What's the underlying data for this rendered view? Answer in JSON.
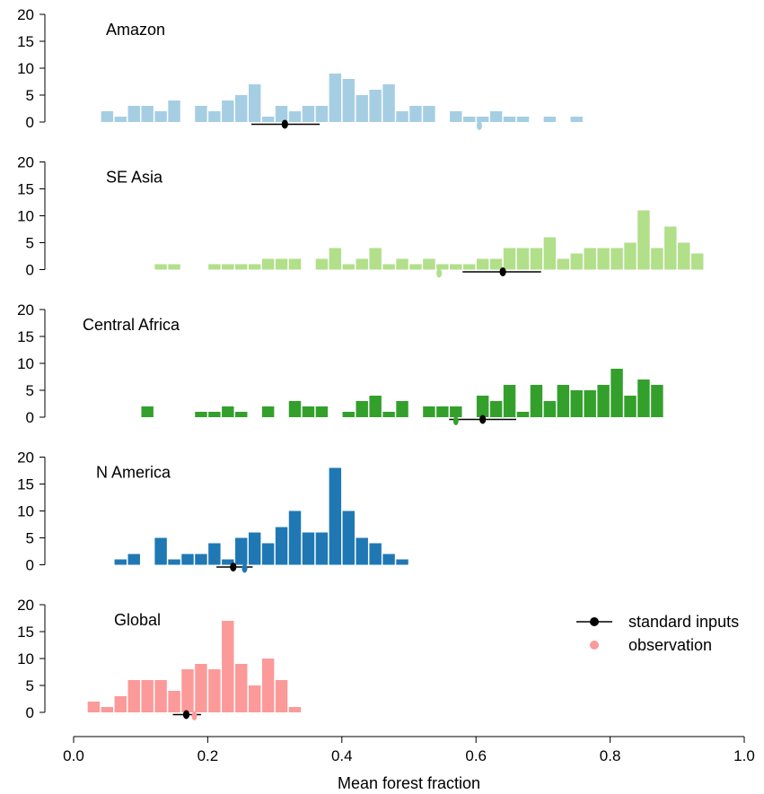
{
  "chart_data": {
    "type": "bar",
    "xlabel": "Mean forest fraction",
    "xlim": [
      0,
      1
    ],
    "x_ticks": [
      "0.0",
      "0.2",
      "0.4",
      "0.6",
      "0.8",
      "1.0"
    ],
    "y_ticks": [
      "0",
      "5",
      "10",
      "15",
      "20"
    ],
    "ylim": [
      0,
      20
    ],
    "bin_width": 0.02,
    "legend": {
      "position": "bottom-right",
      "entries": [
        {
          "label": "standard inputs",
          "color": "#000000",
          "marker": "point-with-line"
        },
        {
          "label": "observation",
          "color": "#fb9a99",
          "marker": "point"
        }
      ]
    },
    "panels": [
      {
        "name": "Amazon",
        "color": "#a6cee3",
        "bins": [
          {
            "x": 0.05,
            "count": 2
          },
          {
            "x": 0.07,
            "count": 1
          },
          {
            "x": 0.09,
            "count": 3
          },
          {
            "x": 0.11,
            "count": 3
          },
          {
            "x": 0.13,
            "count": 2
          },
          {
            "x": 0.15,
            "count": 4
          },
          {
            "x": 0.19,
            "count": 3
          },
          {
            "x": 0.21,
            "count": 2
          },
          {
            "x": 0.23,
            "count": 4
          },
          {
            "x": 0.25,
            "count": 5
          },
          {
            "x": 0.27,
            "count": 7
          },
          {
            "x": 0.29,
            "count": 1
          },
          {
            "x": 0.31,
            "count": 3
          },
          {
            "x": 0.33,
            "count": 2
          },
          {
            "x": 0.35,
            "count": 3
          },
          {
            "x": 0.37,
            "count": 3
          },
          {
            "x": 0.39,
            "count": 9
          },
          {
            "x": 0.41,
            "count": 8
          },
          {
            "x": 0.43,
            "count": 5
          },
          {
            "x": 0.45,
            "count": 6
          },
          {
            "x": 0.47,
            "count": 7
          },
          {
            "x": 0.49,
            "count": 2
          },
          {
            "x": 0.51,
            "count": 3
          },
          {
            "x": 0.53,
            "count": 3
          },
          {
            "x": 0.57,
            "count": 2
          },
          {
            "x": 0.59,
            "count": 1
          },
          {
            "x": 0.61,
            "count": 1
          },
          {
            "x": 0.63,
            "count": 2
          },
          {
            "x": 0.65,
            "count": 1
          },
          {
            "x": 0.67,
            "count": 1
          },
          {
            "x": 0.71,
            "count": 1
          },
          {
            "x": 0.75,
            "count": 1
          }
        ],
        "standard_inputs": {
          "mean": 0.315,
          "low": 0.265,
          "high": 0.367
        },
        "observation": 0.605
      },
      {
        "name": "SE Asia",
        "color": "#b2df8a",
        "bins": [
          {
            "x": 0.13,
            "count": 1
          },
          {
            "x": 0.15,
            "count": 1
          },
          {
            "x": 0.21,
            "count": 1
          },
          {
            "x": 0.23,
            "count": 1
          },
          {
            "x": 0.25,
            "count": 1
          },
          {
            "x": 0.27,
            "count": 1
          },
          {
            "x": 0.29,
            "count": 2
          },
          {
            "x": 0.31,
            "count": 2
          },
          {
            "x": 0.33,
            "count": 2
          },
          {
            "x": 0.37,
            "count": 2
          },
          {
            "x": 0.39,
            "count": 4
          },
          {
            "x": 0.41,
            "count": 1
          },
          {
            "x": 0.43,
            "count": 2
          },
          {
            "x": 0.45,
            "count": 4
          },
          {
            "x": 0.47,
            "count": 1
          },
          {
            "x": 0.49,
            "count": 2
          },
          {
            "x": 0.51,
            "count": 1
          },
          {
            "x": 0.53,
            "count": 2
          },
          {
            "x": 0.55,
            "count": 1
          },
          {
            "x": 0.57,
            "count": 1
          },
          {
            "x": 0.59,
            "count": 1
          },
          {
            "x": 0.61,
            "count": 2
          },
          {
            "x": 0.63,
            "count": 2
          },
          {
            "x": 0.65,
            "count": 4
          },
          {
            "x": 0.67,
            "count": 4
          },
          {
            "x": 0.69,
            "count": 4
          },
          {
            "x": 0.71,
            "count": 6
          },
          {
            "x": 0.73,
            "count": 2
          },
          {
            "x": 0.75,
            "count": 3
          },
          {
            "x": 0.77,
            "count": 4
          },
          {
            "x": 0.79,
            "count": 4
          },
          {
            "x": 0.81,
            "count": 4
          },
          {
            "x": 0.83,
            "count": 5
          },
          {
            "x": 0.85,
            "count": 11
          },
          {
            "x": 0.87,
            "count": 4
          },
          {
            "x": 0.89,
            "count": 8
          },
          {
            "x": 0.91,
            "count": 5
          },
          {
            "x": 0.93,
            "count": 3
          }
        ],
        "standard_inputs": {
          "mean": 0.64,
          "low": 0.58,
          "high": 0.697
        },
        "observation": 0.545
      },
      {
        "name": "Central Africa",
        "color": "#33a02c",
        "bins": [
          {
            "x": 0.11,
            "count": 2
          },
          {
            "x": 0.19,
            "count": 1
          },
          {
            "x": 0.21,
            "count": 1
          },
          {
            "x": 0.23,
            "count": 2
          },
          {
            "x": 0.25,
            "count": 1
          },
          {
            "x": 0.29,
            "count": 2
          },
          {
            "x": 0.33,
            "count": 3
          },
          {
            "x": 0.35,
            "count": 2
          },
          {
            "x": 0.37,
            "count": 2
          },
          {
            "x": 0.41,
            "count": 1
          },
          {
            "x": 0.43,
            "count": 3
          },
          {
            "x": 0.45,
            "count": 4
          },
          {
            "x": 0.47,
            "count": 1
          },
          {
            "x": 0.49,
            "count": 3
          },
          {
            "x": 0.53,
            "count": 2
          },
          {
            "x": 0.55,
            "count": 2
          },
          {
            "x": 0.57,
            "count": 2
          },
          {
            "x": 0.61,
            "count": 4
          },
          {
            "x": 0.63,
            "count": 3
          },
          {
            "x": 0.65,
            "count": 6
          },
          {
            "x": 0.67,
            "count": 1
          },
          {
            "x": 0.69,
            "count": 6
          },
          {
            "x": 0.71,
            "count": 3
          },
          {
            "x": 0.73,
            "count": 6
          },
          {
            "x": 0.75,
            "count": 5
          },
          {
            "x": 0.77,
            "count": 5
          },
          {
            "x": 0.79,
            "count": 6
          },
          {
            "x": 0.81,
            "count": 9
          },
          {
            "x": 0.83,
            "count": 4
          },
          {
            "x": 0.85,
            "count": 7
          },
          {
            "x": 0.87,
            "count": 6
          }
        ],
        "standard_inputs": {
          "mean": 0.61,
          "low": 0.56,
          "high": 0.66
        },
        "observation": 0.57
      },
      {
        "name": "N America",
        "color": "#1f78b4",
        "bins": [
          {
            "x": 0.07,
            "count": 1
          },
          {
            "x": 0.09,
            "count": 2
          },
          {
            "x": 0.13,
            "count": 5
          },
          {
            "x": 0.15,
            "count": 1
          },
          {
            "x": 0.17,
            "count": 2
          },
          {
            "x": 0.19,
            "count": 2
          },
          {
            "x": 0.21,
            "count": 4
          },
          {
            "x": 0.23,
            "count": 1
          },
          {
            "x": 0.25,
            "count": 5
          },
          {
            "x": 0.27,
            "count": 6
          },
          {
            "x": 0.29,
            "count": 4
          },
          {
            "x": 0.31,
            "count": 7
          },
          {
            "x": 0.33,
            "count": 10
          },
          {
            "x": 0.35,
            "count": 6
          },
          {
            "x": 0.37,
            "count": 6
          },
          {
            "x": 0.39,
            "count": 18
          },
          {
            "x": 0.41,
            "count": 10
          },
          {
            "x": 0.43,
            "count": 5
          },
          {
            "x": 0.45,
            "count": 4
          },
          {
            "x": 0.47,
            "count": 2
          },
          {
            "x": 0.49,
            "count": 1
          }
        ],
        "standard_inputs": {
          "mean": 0.238,
          "low": 0.213,
          "high": 0.267
        },
        "observation": 0.255
      },
      {
        "name": "Global",
        "color": "#fb9a99",
        "bins": [
          {
            "x": 0.03,
            "count": 2
          },
          {
            "x": 0.05,
            "count": 1
          },
          {
            "x": 0.07,
            "count": 3
          },
          {
            "x": 0.09,
            "count": 6
          },
          {
            "x": 0.11,
            "count": 6
          },
          {
            "x": 0.13,
            "count": 6
          },
          {
            "x": 0.15,
            "count": 4
          },
          {
            "x": 0.17,
            "count": 8
          },
          {
            "x": 0.19,
            "count": 9
          },
          {
            "x": 0.21,
            "count": 8
          },
          {
            "x": 0.23,
            "count": 17
          },
          {
            "x": 0.25,
            "count": 9
          },
          {
            "x": 0.27,
            "count": 5
          },
          {
            "x": 0.29,
            "count": 10
          },
          {
            "x": 0.31,
            "count": 6
          },
          {
            "x": 0.33,
            "count": 1
          }
        ],
        "standard_inputs": {
          "mean": 0.168,
          "low": 0.148,
          "high": 0.19
        },
        "observation": 0.18
      }
    ]
  }
}
